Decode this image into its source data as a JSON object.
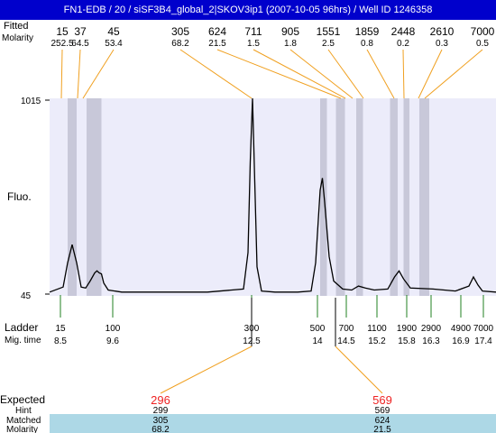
{
  "window": {
    "title": "FN1-EDB / 20 / siSF3B4_global_2|SKOV3ip1 (2007-10-05 96hrs) / Well ID 1246358"
  },
  "header_rows": {
    "size_label": "Fitted",
    "molarity_label": "Molarity"
  },
  "peaks": [
    {
      "size": "15",
      "molarity": "252.5"
    },
    {
      "size": "37",
      "molarity": "64.5"
    },
    {
      "size": "45",
      "molarity": "53.4"
    },
    {
      "size": "305",
      "molarity": "68.2"
    },
    {
      "size": "624",
      "molarity": "21.5"
    },
    {
      "size": "711",
      "molarity": "1.5"
    },
    {
      "size": "905",
      "molarity": "1.8"
    },
    {
      "size": "1551",
      "molarity": "2.5"
    },
    {
      "size": "1859",
      "molarity": "0.8"
    },
    {
      "size": "2448",
      "molarity": "0.2"
    },
    {
      "size": "2610",
      "molarity": "0.3"
    },
    {
      "size": "7000",
      "molarity": "0.5"
    }
  ],
  "ladder": {
    "label": "Ladder",
    "time_label": "Mig. time",
    "sizes": [
      "15",
      "100",
      "300",
      "500",
      "700",
      "1100",
      "1900",
      "2900",
      "4900",
      "7000"
    ],
    "times": [
      "8.5",
      "9.6",
      "12.5",
      "14",
      "14.5",
      "15.2",
      "15.8",
      "16.3",
      "16.9",
      "17.4"
    ]
  },
  "expected": {
    "label": "Expected",
    "hint_label": "Hint",
    "matched_label": "Matched",
    "molarity_label": "Molarity",
    "items": [
      {
        "expected": "296",
        "hint": "299",
        "matched": "305",
        "molarity": "68.2"
      },
      {
        "expected": "569",
        "hint": "569",
        "matched": "624",
        "molarity": "21.5"
      }
    ]
  },
  "chart_data": {
    "type": "line",
    "ylabel": "Fluo.",
    "yticks": [
      "1015",
      "45"
    ],
    "ylim": [
      45,
      1015
    ],
    "xlim": [
      8,
      17.9
    ],
    "x_unit": "migration time",
    "series": [
      {
        "x": [
          8.0,
          8.3,
          8.4,
          8.5,
          8.6,
          8.7,
          8.8,
          8.9,
          9.0,
          9.05,
          9.1,
          9.15,
          9.2,
          9.3,
          9.6,
          10.5,
          11.5,
          12.3,
          12.4,
          12.45,
          12.5,
          12.55,
          12.6,
          12.7,
          13.0,
          13.5,
          13.8,
          13.9,
          14.0,
          14.05,
          14.1,
          14.2,
          14.3,
          14.5,
          14.7,
          14.85,
          15.0,
          15.2,
          15.5,
          15.65,
          15.75,
          15.85,
          16.0,
          16.5,
          17.0,
          17.3,
          17.4,
          17.5,
          17.6,
          17.9
        ],
        "y": [
          55,
          80,
          200,
          290,
          200,
          80,
          75,
          110,
          150,
          160,
          150,
          145,
          100,
          65,
          55,
          55,
          55,
          70,
          250,
          700,
          1015,
          600,
          180,
          60,
          55,
          55,
          60,
          200,
          560,
          620,
          500,
          230,
          110,
          70,
          65,
          85,
          75,
          65,
          70,
          130,
          160,
          120,
          75,
          70,
          60,
          85,
          130,
          90,
          60,
          55
        ]
      }
    ],
    "bands": [
      {
        "start": 8.4,
        "end": 8.6
      },
      {
        "start": 8.82,
        "end": 9.15
      },
      {
        "start": 14.0,
        "end": 14.15
      },
      {
        "start": 14.35,
        "end": 14.55
      },
      {
        "start": 14.8,
        "end": 14.95
      },
      {
        "start": 15.55,
        "end": 15.72
      },
      {
        "start": 15.85,
        "end": 15.98
      },
      {
        "start": 16.2,
        "end": 16.42
      }
    ],
    "grid": false,
    "legend": "none"
  }
}
